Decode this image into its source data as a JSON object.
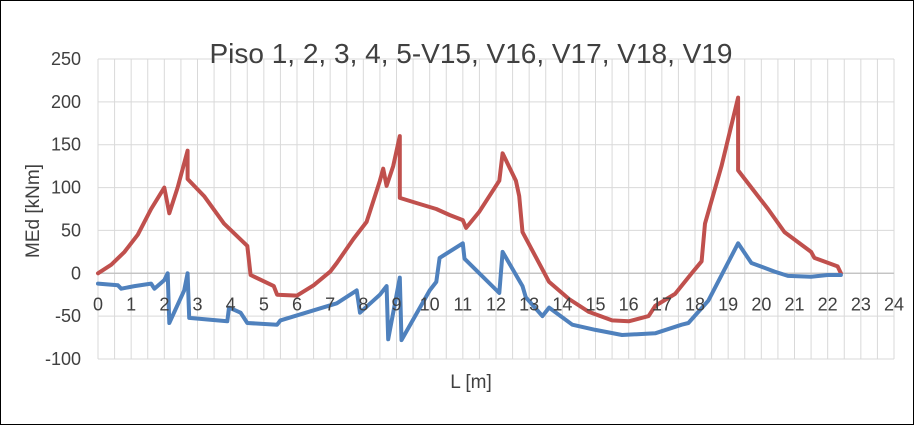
{
  "chart_data": {
    "type": "line",
    "title": "Piso 1, 2, 3, 4, 5-V15, V16, V17, V18, V19",
    "xlabel": "L [m]",
    "ylabel": "MEd [kNm]",
    "xlim": [
      0,
      24
    ],
    "ylim": [
      -100,
      250
    ],
    "x_ticks": [
      0,
      1,
      2,
      3,
      4,
      5,
      6,
      7,
      8,
      9,
      10,
      11,
      12,
      13,
      14,
      15,
      16,
      17,
      18,
      19,
      20,
      21,
      22,
      23,
      24
    ],
    "y_ticks": [
      -100,
      -50,
      0,
      50,
      100,
      150,
      200,
      250
    ],
    "grid": true,
    "minor_x_grid": 0.5,
    "legend": "none",
    "series": [
      {
        "color": "#C0504D",
        "points": [
          [
            0.0,
            0
          ],
          [
            0.4,
            10
          ],
          [
            0.8,
            25
          ],
          [
            1.2,
            45
          ],
          [
            1.6,
            75
          ],
          [
            2.0,
            100
          ],
          [
            2.15,
            70
          ],
          [
            2.4,
            100
          ],
          [
            2.7,
            143
          ],
          [
            2.7,
            110
          ],
          [
            3.2,
            90
          ],
          [
            3.8,
            58
          ],
          [
            4.5,
            32
          ],
          [
            4.6,
            -2
          ],
          [
            5.3,
            -15
          ],
          [
            5.4,
            -25
          ],
          [
            6.0,
            -26
          ],
          [
            6.5,
            -14
          ],
          [
            7.0,
            2
          ],
          [
            7.2,
            12
          ],
          [
            7.7,
            40
          ],
          [
            8.1,
            60
          ],
          [
            8.5,
            108
          ],
          [
            8.6,
            122
          ],
          [
            8.7,
            102
          ],
          [
            8.9,
            125
          ],
          [
            9.1,
            160
          ],
          [
            9.1,
            88
          ],
          [
            9.6,
            82
          ],
          [
            10.2,
            75
          ],
          [
            10.6,
            68
          ],
          [
            11.0,
            62
          ],
          [
            11.1,
            53
          ],
          [
            11.5,
            72
          ],
          [
            12.1,
            108
          ],
          [
            12.2,
            140
          ],
          [
            12.6,
            108
          ],
          [
            12.7,
            90
          ],
          [
            12.8,
            48
          ],
          [
            13.6,
            -10
          ],
          [
            14.2,
            -30
          ],
          [
            14.8,
            -45
          ],
          [
            15.5,
            -55
          ],
          [
            16.0,
            -56
          ],
          [
            16.6,
            -50
          ],
          [
            16.8,
            -38
          ],
          [
            17.4,
            -24
          ],
          [
            17.9,
            0
          ],
          [
            18.2,
            14
          ],
          [
            18.3,
            58
          ],
          [
            18.8,
            125
          ],
          [
            19.3,
            205
          ],
          [
            19.3,
            120
          ],
          [
            19.8,
            95
          ],
          [
            20.2,
            75
          ],
          [
            20.7,
            48
          ],
          [
            21.5,
            25
          ],
          [
            21.6,
            18
          ],
          [
            22.3,
            8
          ],
          [
            22.4,
            0
          ]
        ]
      },
      {
        "color": "#4F81BD",
        "points": [
          [
            0.0,
            -12
          ],
          [
            0.6,
            -14
          ],
          [
            0.7,
            -18
          ],
          [
            1.1,
            -15
          ],
          [
            1.6,
            -12
          ],
          [
            1.7,
            -18
          ],
          [
            2.0,
            -8
          ],
          [
            2.1,
            0
          ],
          [
            2.15,
            -58
          ],
          [
            2.6,
            -20
          ],
          [
            2.7,
            0
          ],
          [
            2.75,
            -52
          ],
          [
            3.9,
            -56
          ],
          [
            3.95,
            -40
          ],
          [
            4.3,
            -46
          ],
          [
            4.5,
            -58
          ],
          [
            5.4,
            -60
          ],
          [
            5.5,
            -55
          ],
          [
            7.2,
            -35
          ],
          [
            7.8,
            -20
          ],
          [
            7.9,
            -46
          ],
          [
            8.5,
            -25
          ],
          [
            8.7,
            -15
          ],
          [
            8.75,
            -77
          ],
          [
            9.1,
            -5
          ],
          [
            9.15,
            -78
          ],
          [
            10.0,
            -20
          ],
          [
            10.2,
            -10
          ],
          [
            10.3,
            18
          ],
          [
            11.0,
            35
          ],
          [
            11.05,
            17
          ],
          [
            12.1,
            -23
          ],
          [
            12.2,
            25
          ],
          [
            12.8,
            -15
          ],
          [
            12.9,
            -28
          ],
          [
            13.4,
            -50
          ],
          [
            13.6,
            -40
          ],
          [
            14.3,
            -60
          ],
          [
            15.0,
            -66
          ],
          [
            15.8,
            -72
          ],
          [
            16.8,
            -70
          ],
          [
            17.6,
            -60
          ],
          [
            17.8,
            -58
          ],
          [
            18.4,
            -32
          ],
          [
            19.3,
            35
          ],
          [
            19.7,
            12
          ],
          [
            20.4,
            2
          ],
          [
            20.8,
            -3
          ],
          [
            21.5,
            -4
          ],
          [
            22.0,
            -2
          ],
          [
            22.4,
            -2
          ]
        ]
      }
    ]
  }
}
